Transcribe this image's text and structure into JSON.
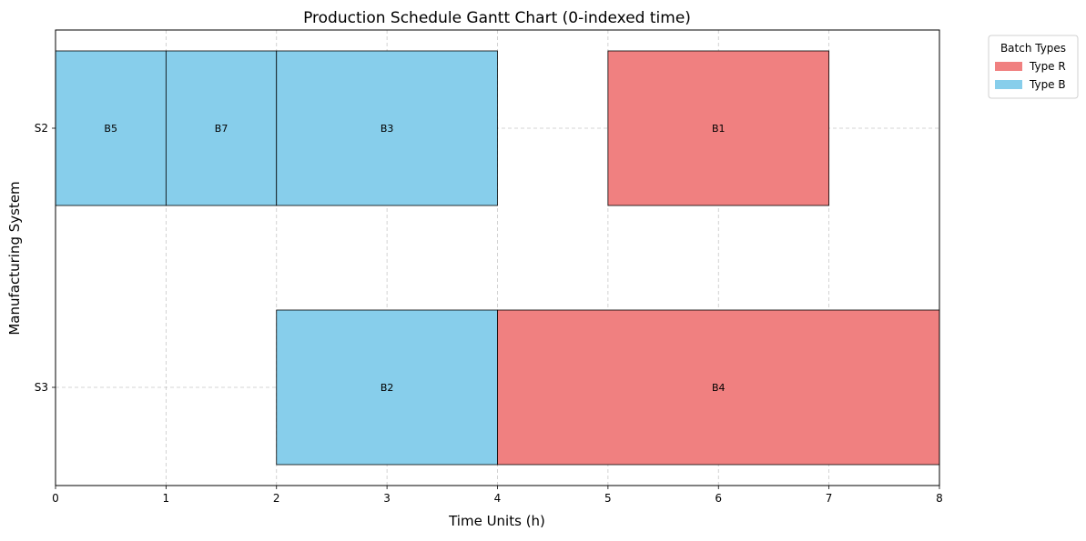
{
  "chart_data": {
    "type": "gantt",
    "title": "Production Schedule Gantt Chart (0-indexed time)",
    "xlabel": "Time Units (h)",
    "ylabel": "Manufacturing System",
    "xlim": [
      0,
      8
    ],
    "xticks": [
      0,
      1,
      2,
      3,
      4,
      5,
      6,
      7,
      8
    ],
    "grid": true,
    "systems": [
      "S2",
      "S3"
    ],
    "legend": {
      "title": "Batch Types",
      "placement": "outside top-right",
      "entries": [
        {
          "label": "Type R",
          "color": "#f08080"
        },
        {
          "label": "Type B",
          "color": "#87ceeb"
        }
      ]
    },
    "tasks": [
      {
        "system": "S2",
        "batch": "B5",
        "type": "B",
        "start": 0,
        "end": 1
      },
      {
        "system": "S2",
        "batch": "B7",
        "type": "B",
        "start": 1,
        "end": 2
      },
      {
        "system": "S2",
        "batch": "B3",
        "type": "B",
        "start": 2,
        "end": 4
      },
      {
        "system": "S2",
        "batch": "B1",
        "type": "R",
        "start": 5,
        "end": 7
      },
      {
        "system": "S3",
        "batch": "B2",
        "type": "B",
        "start": 2,
        "end": 4
      },
      {
        "system": "S3",
        "batch": "B4",
        "type": "R",
        "start": 4,
        "end": 8
      }
    ],
    "colors": {
      "R": "#f08080",
      "B": "#87ceeb"
    }
  }
}
